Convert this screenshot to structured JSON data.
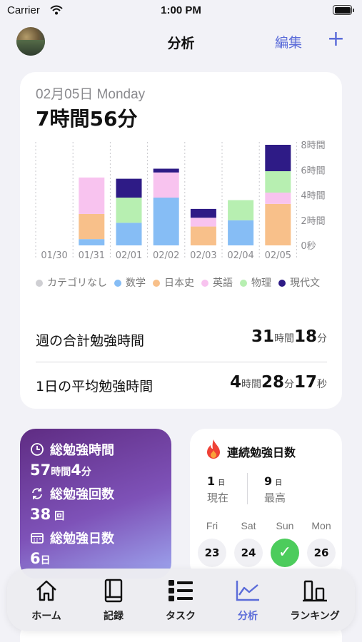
{
  "status_bar": {
    "carrier": "Carrier",
    "time": "1:00 PM"
  },
  "nav": {
    "title": "分析",
    "edit_label": "編集",
    "add_label": "+"
  },
  "summary": {
    "date": "02月05日 Monday",
    "total": "7時間56分",
    "weekly_total_label": "週の合計勉強時間",
    "weekly_total": {
      "h": "31",
      "h_unit": "時間",
      "m": "18",
      "m_unit": "分"
    },
    "daily_avg_label": "1日の平均勉強時間",
    "daily_avg": {
      "h": "4",
      "h_unit": "時間",
      "m": "28",
      "m_unit": "分",
      "s": "17",
      "s_unit": "秒"
    }
  },
  "chart_data": {
    "type": "bar",
    "stacked": true,
    "categories": [
      "01/30",
      "01/31",
      "02/01",
      "02/02",
      "02/03",
      "02/04",
      "02/05"
    ],
    "y_ticks": [
      "8時間",
      "6時間",
      "4時間",
      "2時間",
      "0秒"
    ],
    "ylim": [
      0,
      8
    ],
    "series": [
      {
        "name": "カテゴリなし",
        "color": "#cfcfd3",
        "values": [
          0,
          0,
          0,
          0,
          0,
          0,
          0
        ]
      },
      {
        "name": "数学",
        "color": "#86bdf5",
        "values": [
          0,
          0.5,
          1.8,
          3.8,
          0,
          2.0,
          0
        ]
      },
      {
        "name": "日本史",
        "color": "#f8c08a",
        "values": [
          0,
          2.0,
          0,
          0,
          1.5,
          0,
          3.3
        ]
      },
      {
        "name": "英語",
        "color": "#f8c3ef",
        "values": [
          0,
          2.9,
          0,
          2.0,
          0.7,
          0,
          0.9
        ]
      },
      {
        "name": "物理",
        "color": "#b7efb1",
        "values": [
          0,
          0,
          2.0,
          0,
          0,
          1.6,
          1.7
        ]
      },
      {
        "name": "現代文",
        "color": "#2e1b86",
        "values": [
          0,
          0,
          1.5,
          0.3,
          0.7,
          0,
          2.1
        ]
      }
    ],
    "grid": true,
    "legend": "bottom"
  },
  "stats": {
    "total_time_label": "総勉強時間",
    "total_time": {
      "h": "57",
      "h_unit": "時間",
      "m": "4",
      "m_unit": "分"
    },
    "total_count_label": "総勉強回数",
    "total_count": {
      "n": "38",
      "unit": "回"
    },
    "total_days_label": "総勉強日数",
    "total_days": {
      "n": "6",
      "unit": "日"
    }
  },
  "streak": {
    "title": "連続勉強日数",
    "current": {
      "n": "1",
      "unit": "日",
      "label": "現在"
    },
    "best": {
      "n": "9",
      "unit": "日",
      "label": "最高"
    },
    "days": [
      {
        "name": "Fri",
        "date": "23",
        "done": false
      },
      {
        "name": "Sat",
        "date": "24",
        "done": false
      },
      {
        "name": "Sun",
        "date": "✓",
        "done": true
      },
      {
        "name": "Mon",
        "date": "26",
        "done": false
      }
    ]
  },
  "tabs": [
    {
      "label": "ホーム",
      "icon": "home-icon"
    },
    {
      "label": "記録",
      "icon": "book-icon"
    },
    {
      "label": "タスク",
      "icon": "list-icon"
    },
    {
      "label": "分析",
      "icon": "chart-icon",
      "active": true
    },
    {
      "label": "ランキング",
      "icon": "ranking-icon"
    }
  ]
}
